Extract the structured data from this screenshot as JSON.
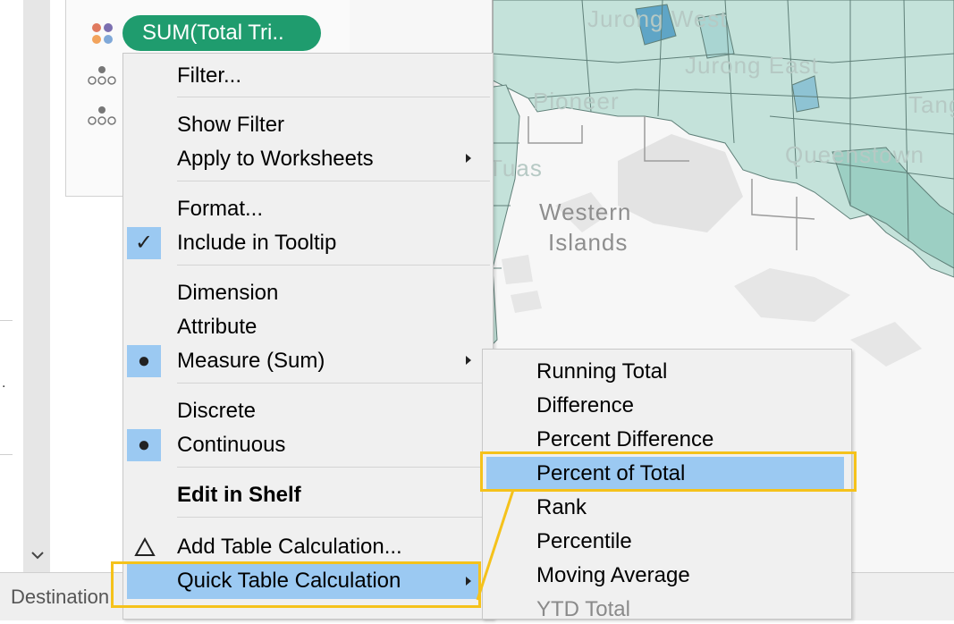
{
  "marks": {
    "pill_label": "SUM(Total Tri.."
  },
  "map": {
    "labels": {
      "jurong_west": "Jurong West",
      "jurong_east": "Jurong East",
      "pioneer": "Pioneer",
      "western": "Western",
      "islands": "Islands",
      "queenstown": "Queenstown",
      "tanglin": "Tanglin",
      "tuas": "Tuas"
    }
  },
  "tab": {
    "destination": "Destination"
  },
  "context_menu": {
    "filter": "Filter...",
    "show_filter": "Show Filter",
    "apply_to_worksheets": "Apply to Worksheets",
    "format": "Format...",
    "include_in_tooltip": "Include in Tooltip",
    "dimension": "Dimension",
    "attribute": "Attribute",
    "measure_sum": "Measure (Sum)",
    "discrete": "Discrete",
    "continuous": "Continuous",
    "edit_in_shelf": "Edit in Shelf",
    "add_table_calculation": "Add Table Calculation...",
    "quick_table_calculation": "Quick Table Calculation"
  },
  "submenu": {
    "items": [
      "Running Total",
      "Difference",
      "Percent Difference",
      "Percent of Total",
      "Rank",
      "Percentile",
      "Moving Average",
      "YTD Total"
    ]
  },
  "colors": {
    "pill": "#1f9c6e",
    "highlight": "#9bc9f2",
    "callout": "#f5c21b",
    "map_fill": "#c4e2da"
  }
}
